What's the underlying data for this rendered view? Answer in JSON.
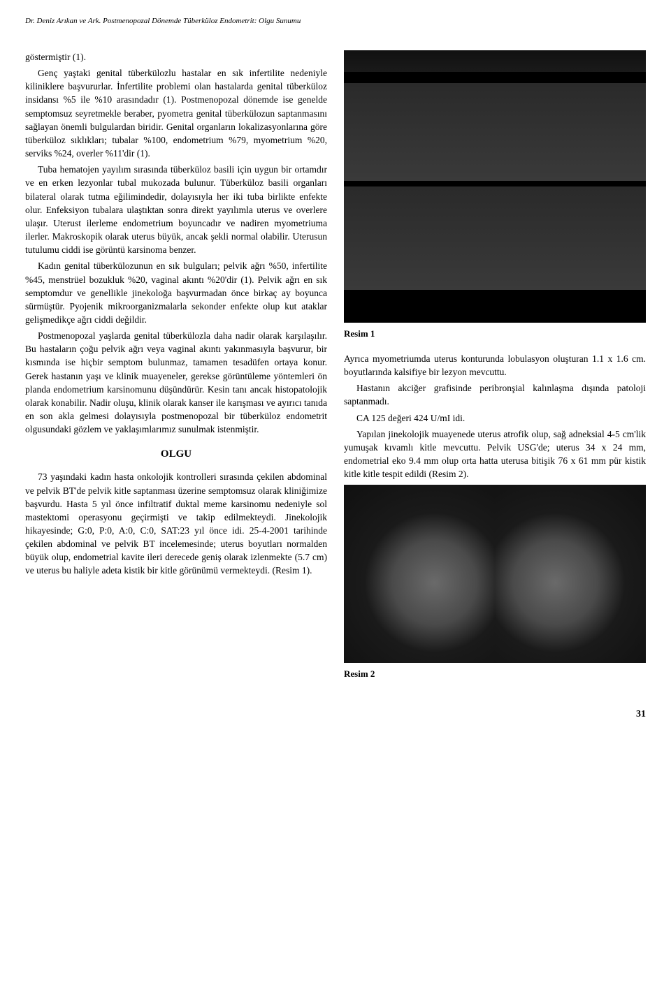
{
  "header": {
    "running_title": "Dr. Deniz Arıkan ve Ark. Postmenopozal Dönemde Tüberküloz Endometrit: Olgu Sunumu"
  },
  "left_column": {
    "p1": "göstermiştir (1).",
    "p2": "Genç yaştaki genital tüberkülozlu hastalar en sık infertilite nedeniyle kiliniklere başvururlar. İnfertilite problemi olan hastalarda genital tüberküloz insidansı %5 ile %10 arasındadır (1). Postmenopozal dönemde ise genelde semptomsuz seyretmekle beraber, pyometra genital tüberkülozun saptanmasını sağlayan önemli bulgulardan biridir. Genital organların lokalizasyonlarına göre tüberküloz sıklıkları; tubalar %100, endometrium %79, myometrium %20, serviks %24, overler %11'dir (1).",
    "p3": "Tuba hematojen yayılım sırasında tüberküloz basili için uygun bir ortamdır ve en erken lezyonlar tubal mukozada bulunur. Tüberküloz basili organları bilateral olarak tutma eğilimindedir, dolayısıyla her iki tuba birlikte enfekte olur. Enfeksiyon tubalara ulaştıktan sonra direkt yayılımla uterus ve overlere ulaşır. Uterust ilerleme endometrium boyuncadır ve nadiren myometriuma ilerler. Makroskopik olarak uterus büyük, ancak şekli normal olabilir. Uterusun tutulumu ciddi ise görüntü karsinoma benzer.",
    "p4": "Kadın genital tüberkülozunun en sık bulguları; pelvik ağrı %50, infertilite %45, menstrüel bozukluk %20, vaginal akıntı %20'dir (1). Pelvik ağrı en sık semptomdur ve genellikle jinekoloğa başvurmadan önce birkaç ay boyunca sürmüştür. Pyojenik mikroorganizmalarla sekonder enfekte olup kut ataklar gelişmedikçe ağrı ciddi değildir.",
    "p5": "Postmenopozal yaşlarda genital tüberkülozla daha nadir olarak karşılaşılır. Bu hastaların çoğu pelvik ağrı veya vaginal akıntı yakınmasıyla başvurur, bir kısmında ise hiçbir semptom bulunmaz, tamamen tesadüfen ortaya konur. Gerek hastanın yaşı ve klinik muayeneler, gerekse görüntüleme yöntemleri ön planda endometrium karsinomunu düşündürür. Kesin tanı ancak histopatolojik olarak konabilir. Nadir oluşu, klinik olarak kanser ile karışması ve ayırıcı tanıda en son akla gelmesi dolayısıyla postmenopozal bir tüberküloz endometrit olgusundaki gözlem ve yaklaşımlarımız sunulmak istenmiştir.",
    "section_heading": "OLGU",
    "p6": "73 yaşındaki kadın hasta onkolojik kontrolleri sırasında çekilen abdominal ve pelvik BT'de pelvik kitle saptanması üzerine semptomsuz olarak kliniğimize başvurdu. Hasta 5 yıl önce infiltratif duktal meme karsinomu nedeniyle sol mastektomi operasyonu geçirmişti ve takip edilmekteydi. Jinekolojik hikayesinde; G:0, P:0, A:0, C:0, SAT:23 yıl önce idi. 25-4-2001 tarihinde çekilen abdominal ve pelvik BT incelemesinde; uterus boyutları normalden büyük olup, endometrial kavite ileri derecede geniş olarak izlenmekte (5.7 cm) ve uterus bu haliyle adeta kistik bir kitle görünümü vermekteydi. (Resim 1)."
  },
  "right_column": {
    "figure1_caption": "Resim 1",
    "p1": "Ayrıca myometriumda uterus konturunda lobulasyon oluşturan 1.1 x 1.6 cm. boyutlarında kalsifiye bir lezyon mevcuttu.",
    "p2": "Hastanın akciğer grafisinde peribronşial kalınlaşma dışında patoloji saptanmadı.",
    "p3": "CA 125 değeri 424 U/mI idi.",
    "p4": "Yapılan jinekolojik muayenede uterus atrofik olup, sağ adneksial 4-5 cm'lik yumuşak kıvamlı kitle mevcuttu. Pelvik USG'de; uterus 34 x  24 mm, endometrial eko 9.4 mm olup orta hatta uterusa bitişik 76 x 61 mm pür kistik kitle kitle tespit edildi (Resim 2).",
    "figure2_caption": "Resim 2"
  },
  "page_number": "31"
}
